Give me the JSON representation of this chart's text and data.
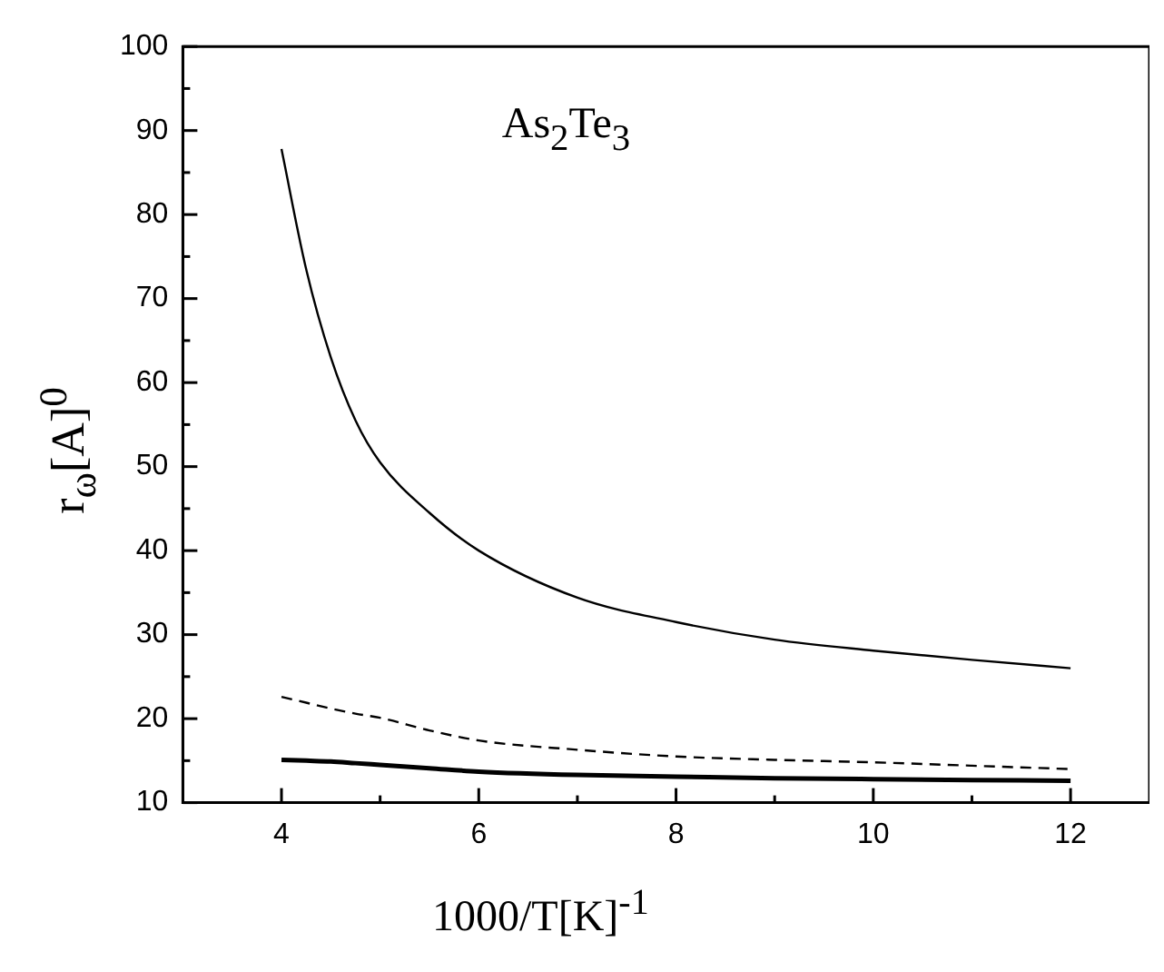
{
  "chart_data": {
    "type": "line",
    "xlabel": "1000/T[K]$^{-1}$",
    "ylabel": "r$_{ω}$[A]$^{0}$",
    "annotations": [
      "As$_{2}$Te$_{3}$"
    ],
    "x": [
      4,
      4.25,
      4.5,
      4.75,
      5,
      5.5,
      6,
      7,
      8,
      9,
      10,
      11,
      12
    ],
    "series": [
      {
        "color": "#000000",
        "line_style": "solid",
        "values": [
          87.8,
          73.5,
          63,
          55.5,
          50.5,
          44.5,
          40,
          34.4,
          31.5,
          29.4,
          28.1,
          27,
          26
        ]
      },
      {
        "color": "#000000",
        "line_style": "dashed",
        "values": [
          22.6,
          21.9,
          21.2,
          20.6,
          20.1,
          18.6,
          17.4,
          16.3,
          15.5,
          15.1,
          14.8,
          14.4,
          14
        ]
      },
      {
        "color": "#000000",
        "line_style": "solid",
        "values": [
          15.1,
          15,
          14.9,
          14.7,
          14.5,
          14.1,
          13.7,
          13.3,
          13.1,
          12.9,
          12.8,
          12.7,
          12.6
        ]
      }
    ],
    "xlim": [
      3,
      12.8
    ],
    "xticks": [
      4,
      {
        "value": 5,
        "label": null
      },
      6,
      {
        "value": 7,
        "label": null
      },
      8,
      {
        "value": 9,
        "label": null
      },
      10,
      {
        "value": 11,
        "label": null
      },
      12
    ],
    "ylim": [
      10,
      100
    ],
    "yticks": [
      10,
      {
        "value": 15,
        "label": null
      },
      20,
      {
        "value": 25,
        "label": null
      },
      30,
      {
        "value": 35,
        "label": null
      },
      40,
      {
        "value": 45,
        "label": null
      },
      50,
      {
        "value": 55,
        "label": null
      },
      60,
      {
        "value": 65,
        "label": null
      },
      70,
      {
        "value": 75,
        "label": null
      },
      80,
      {
        "value": 85,
        "label": null
      },
      90,
      {
        "value": 95,
        "label": null
      },
      100
    ],
    "grid": false,
    "marker": "none"
  }
}
